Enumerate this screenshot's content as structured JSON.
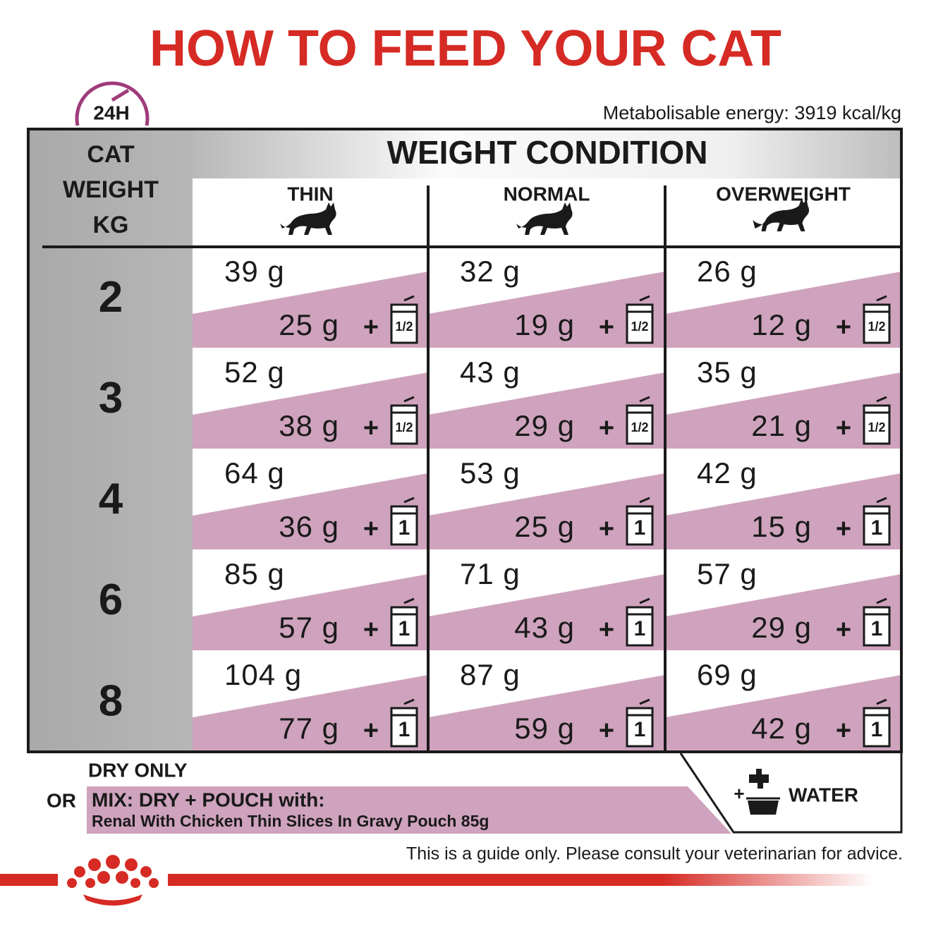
{
  "title": "HOW TO FEED YOUR CAT",
  "clock_label": "24H",
  "energy": "Metabolisable energy: 3919 kcal/kg",
  "table": {
    "row_header": [
      "CAT",
      "WEIGHT",
      "KG"
    ],
    "group_header": "WEIGHT CONDITION",
    "columns": [
      "THIN",
      "NORMAL",
      "OVERWEIGHT"
    ],
    "plus_sign": "+",
    "rows": [
      {
        "weight": "2",
        "cells": [
          {
            "dry": "39 g",
            "mix": "25 g",
            "pouch": "1/2"
          },
          {
            "dry": "32 g",
            "mix": "19 g",
            "pouch": "1/2"
          },
          {
            "dry": "26 g",
            "mix": "12 g",
            "pouch": "1/2"
          }
        ]
      },
      {
        "weight": "3",
        "cells": [
          {
            "dry": "52 g",
            "mix": "38 g",
            "pouch": "1/2"
          },
          {
            "dry": "43 g",
            "mix": "29 g",
            "pouch": "1/2"
          },
          {
            "dry": "35 g",
            "mix": "21 g",
            "pouch": "1/2"
          }
        ]
      },
      {
        "weight": "4",
        "cells": [
          {
            "dry": "64 g",
            "mix": "36 g",
            "pouch": "1"
          },
          {
            "dry": "53 g",
            "mix": "25 g",
            "pouch": "1"
          },
          {
            "dry": "42 g",
            "mix": "15 g",
            "pouch": "1"
          }
        ]
      },
      {
        "weight": "6",
        "cells": [
          {
            "dry": "85 g",
            "mix": "57 g",
            "pouch": "1"
          },
          {
            "dry": "71 g",
            "mix": "43 g",
            "pouch": "1"
          },
          {
            "dry": "57 g",
            "mix": "29 g",
            "pouch": "1"
          }
        ]
      },
      {
        "weight": "8",
        "cells": [
          {
            "dry": "104 g",
            "mix": "77 g",
            "pouch": "1"
          },
          {
            "dry": "87 g",
            "mix": "59 g",
            "pouch": "1"
          },
          {
            "dry": "69 g",
            "mix": "42 g",
            "pouch": "1"
          }
        ]
      }
    ]
  },
  "footer": {
    "dry_only": "DRY ONLY",
    "or": "OR",
    "mix_title": "MIX: DRY + POUCH with:",
    "mix_product": "Renal With Chicken Thin Slices In Gravy Pouch 85g",
    "water_plus": "+",
    "water": "WATER",
    "disclaimer": "This is a guide only. Please consult your veterinarian for advice."
  }
}
